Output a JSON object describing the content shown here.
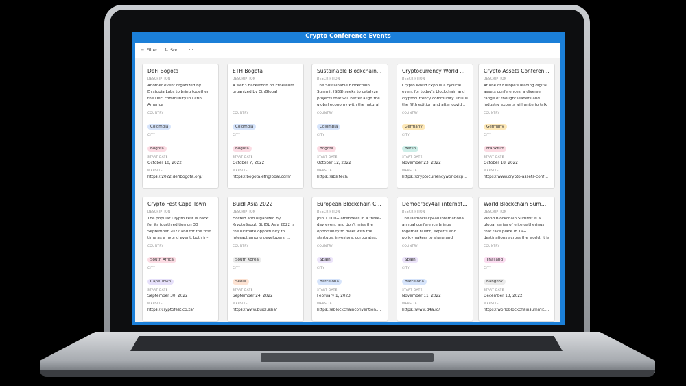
{
  "window": {
    "title": "Crypto Conference Events"
  },
  "toolbar": {
    "filter_label": "Filter",
    "sort_label": "Sort",
    "more_label": "···"
  },
  "labels": {
    "description": "DESCRIPTION",
    "country": "COUNTRY",
    "city": "CITY",
    "start_date": "START DATE",
    "website": "WEBSITE"
  },
  "cards": [
    {
      "title": "DeFi Bogota",
      "description": "Another event organized by Dystopia Labs to bring together the DeFi community in Latin America",
      "country": "Colombia",
      "country_color": "#d6e4fb",
      "city": "Bogota",
      "city_color": "#fbdbe3",
      "start_date": "October 10, 2022",
      "website": "https://2022.defibogota.org/"
    },
    {
      "title": "ETH Bogota",
      "description": "A web3 hackathon on Ethereum organized by EthGlobal",
      "country": "Colombia",
      "country_color": "#d6e4fb",
      "city": "Bogota",
      "city_color": "#fbdbe3",
      "start_date": "October 7, 2022",
      "website": "https://bogota.ethglobal.com/"
    },
    {
      "title": "Sustainable Blockchain Su...",
      "description": "The Sustainable Blockchain Summit (SBS) seeks to catalyze projects that will better align the global economy with the natural ...",
      "country": "Colombia",
      "country_color": "#d6e4fb",
      "city": "Bogota",
      "city_color": "#fbdbe3",
      "start_date": "October 12, 2022",
      "website": "https://sbs.tech/"
    },
    {
      "title": "Cryptocurrency World Expo",
      "description": "Crypto World Expo is a cyclical event for today's blockchain and cryptocurrency community. This is the fifth edition and after covid ...",
      "country": "Germany",
      "country_color": "#fde8b8",
      "city": "Berlin",
      "city_color": "#cdeee8",
      "start_date": "November 23, 2022",
      "website": "https://cryptocurrencyworldexpo..."
    },
    {
      "title": "Crypto Assets Conference",
      "description": "At one of Europe's leading digital assets conferences, a diverse range of thought leaders and industry experts will unite to talk about all...",
      "country": "Germany",
      "country_color": "#fde8b8",
      "city": "Frankfurt",
      "city_color": "#fbdbe3",
      "start_date": "October 18, 2022",
      "website": "https://www.crypto-assets-confer..."
    },
    {
      "title": "Crypto Fest Cape Town",
      "description": "The popular Crypto Fest is back for its fourth edition on 30 September 2022 and for the first time as a hybrid event, both in-person in ...",
      "country": "South Africa",
      "country_color": "#fbdbe3",
      "city": "Cape Town",
      "city_color": "#e6e0fa",
      "start_date": "September 30, 2022",
      "website": "https://cryptofest.co.za/"
    },
    {
      "title": "Buidl Asia 2022",
      "description": "Hosted and organized by KryptoSeoul, BUIDL Asia 2022 is the ultimate opportunity to interact among developers, ...",
      "country": "South Korea",
      "country_color": "#ececec",
      "city": "Seoul",
      "city_color": "#fde2d2",
      "start_date": "September 24, 2022",
      "website": "https://www.buidl.asia/"
    },
    {
      "title": "European Blockchain Con...",
      "description": "Join 1.000+ attendees in a three-day event and don't miss the opportunity to meet with the startups, investors, corporates, an...",
      "country": "Spain",
      "country_color": "#ece4fa",
      "city": "Barcelona",
      "city_color": "#d6e4fb",
      "start_date": "February 1, 2023",
      "website": "https://eblockchainconvention.co..."
    },
    {
      "title": "Democracy4all internatio...",
      "description": "The Democracy4all international annual conference brings together talent, experts and policymakers to share and discuss the latest ...",
      "country": "Spain",
      "country_color": "#ece4fa",
      "city": "Barcelona",
      "city_color": "#d6e4fb",
      "start_date": "November 11, 2022",
      "website": "https://www.d4a.io/"
    },
    {
      "title": "World Blockchain Summit...",
      "description": "World Blockchain Summit is a global series of elite gatherings that take place in 19+ destinations across the world. It is a thought-...",
      "country": "Thailand",
      "country_color": "#fbdcf0",
      "city": "Bangkok",
      "city_color": "#ececec",
      "start_date": "December 13, 2022",
      "website": "https://worldblockchainsummit.c..."
    }
  ]
}
